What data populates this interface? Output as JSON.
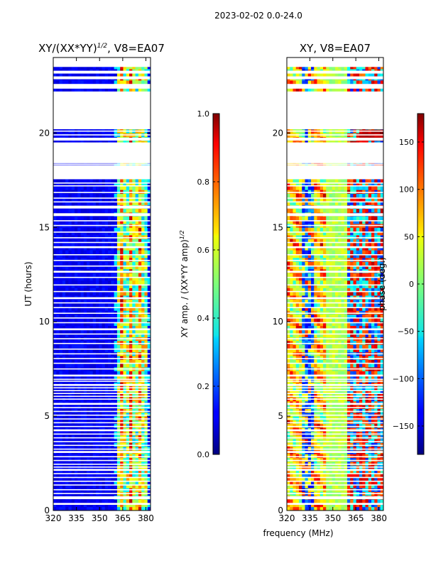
{
  "suptitle": "2023-02-02 0.0-24.0",
  "shared_xlabel": "frequency (MHz)",
  "chart_data": [
    {
      "type": "heatmap",
      "title_main": "XY/(XX*YY)",
      "title_sup": "1/2",
      "title_tail": ", V8=EA07",
      "ylabel": "UT (hours)",
      "xlim": [
        320,
        383
      ],
      "ylim": [
        0,
        24
      ],
      "xticks": [
        "320",
        "335",
        "350",
        "365",
        "380"
      ],
      "xtick_values": [
        320,
        335,
        350,
        365,
        380
      ],
      "yticks": [
        "0",
        "5",
        "10",
        "15",
        "20"
      ],
      "ytick_values": [
        0,
        5,
        10,
        15,
        20
      ],
      "quantity": "amplitude",
      "colorbar": {
        "label_main": "XY amp. / (XX*YY amp)",
        "label_sup": "1/2",
        "ticks": [
          "0.0",
          "0.2",
          "0.4",
          "0.6",
          "0.8",
          "1.0"
        ],
        "tick_values": [
          0.0,
          0.2,
          0.4,
          0.6,
          0.8,
          1.0
        ],
        "range": [
          0.0,
          1.0
        ]
      }
    },
    {
      "type": "heatmap",
      "title_main": "XY, V8=EA07",
      "ylabel": "",
      "xlim": [
        320,
        383
      ],
      "ylim": [
        0,
        24
      ],
      "xticks": [
        "320",
        "335",
        "350",
        "365",
        "380"
      ],
      "xtick_values": [
        320,
        335,
        350,
        365,
        380
      ],
      "yticks": [
        "0",
        "5",
        "10",
        "15",
        "20"
      ],
      "ytick_values": [
        0,
        5,
        10,
        15,
        20
      ],
      "quantity": "phase",
      "colorbar": {
        "label_main": "phase (deg.)",
        "ticks": [
          "−150",
          "−100",
          "−50",
          "0",
          "50",
          "100",
          "150"
        ],
        "tick_values": [
          -150,
          -100,
          -50,
          0,
          50,
          100,
          150
        ],
        "range": [
          -180,
          180
        ]
      }
    }
  ],
  "data_gaps_hours": [
    [
      23.5,
      24.0
    ],
    [
      23.15,
      23.3
    ],
    [
      22.85,
      23.0
    ],
    [
      22.35,
      22.6
    ],
    [
      20.2,
      22.2
    ],
    [
      19.6,
      19.75
    ],
    [
      18.4,
      19.5
    ],
    [
      17.55,
      18.3
    ],
    [
      16.0,
      16.15
    ],
    [
      15.6,
      15.75
    ],
    [
      13.9,
      14.0
    ],
    [
      12.6,
      12.7
    ],
    [
      11.2,
      11.3
    ],
    [
      9.55,
      9.65
    ],
    [
      7.1,
      7.2
    ],
    [
      6.6,
      6.7
    ],
    [
      5.6,
      5.7
    ],
    [
      4.2,
      4.3
    ],
    [
      3.05,
      3.15
    ],
    [
      2.1,
      2.2
    ],
    [
      0.6,
      0.75
    ],
    [
      0.3,
      0.4
    ]
  ],
  "thin_gap_lines_hours": [
    23.2,
    20.1,
    19.9,
    18.35,
    17.35,
    17.2,
    16.85,
    16.55,
    16.35,
    15.35,
    15.1,
    14.75,
    14.45,
    14.2,
    13.55,
    13.25,
    12.95,
    12.35,
    11.95,
    11.6,
    11.0,
    10.75,
    10.45,
    10.2,
    9.95,
    9.35,
    9.1,
    8.85,
    8.55,
    8.3,
    8.05,
    7.8,
    7.5,
    6.95,
    6.85,
    6.5,
    6.35,
    6.2,
    6.05,
    5.9,
    5.45,
    5.25,
    5.05,
    4.85,
    4.65,
    4.45,
    4.05,
    3.85,
    3.65,
    3.45,
    3.25,
    2.85,
    2.65,
    2.45,
    2.3,
    1.95,
    1.75,
    1.55,
    1.35,
    1.1,
    0.9
  ]
}
